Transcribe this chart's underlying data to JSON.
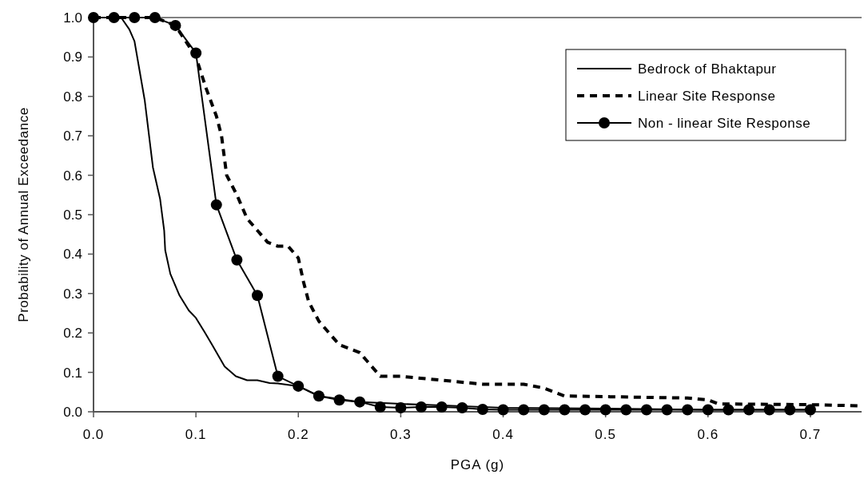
{
  "chart_data": {
    "type": "line",
    "xlabel": "PGA (g)",
    "ylabel": "Probability of Annual Exceedance",
    "xlim": [
      0,
      0.75
    ],
    "xticks": [
      "0.0",
      0.1,
      0.2,
      0.3,
      0.4,
      0.5,
      0.6,
      0.7
    ],
    "ylim": [
      0,
      1
    ],
    "yticks": [
      {
        "value": 0,
        "label": "0.0"
      },
      0.1,
      0.2,
      0.3,
      0.4,
      0.5,
      0.6,
      0.7,
      0.8,
      0.9,
      {
        "value": 1,
        "label": "1.0"
      }
    ],
    "grid": false,
    "legend": "top right",
    "series": [
      {
        "name": "Bedrock of Bhaktapur",
        "color": "#000000",
        "line_style": "solid",
        "marker": "none",
        "x": [
          0,
          0.02,
          0.027,
          0.035,
          0.04,
          0.05,
          0.058,
          0.065,
          0.069,
          0.07,
          0.075,
          0.084,
          0.093,
          0.1,
          0.109,
          0.116,
          0.128,
          0.139,
          0.15,
          0.16,
          0.172,
          0.18,
          0.2,
          0.22,
          0.26,
          0.3,
          0.35,
          0.4,
          0.5,
          0.6,
          0.7
        ],
        "values": [
          1,
          1,
          1,
          0.97,
          0.94,
          0.79,
          0.62,
          0.54,
          0.46,
          0.41,
          0.35,
          0.295,
          0.257,
          0.238,
          0.2,
          0.169,
          0.115,
          0.09,
          0.08,
          0.08,
          0.073,
          0.072,
          0.065,
          0.04,
          0.025,
          0.02,
          0.015,
          0.01,
          0.008,
          0.005,
          0.005
        ]
      },
      {
        "name": "Linear Site Response",
        "color": "#000000",
        "line_style": "dashed",
        "marker": "none",
        "x": [
          0,
          0.06,
          0.08,
          0.09,
          0.1,
          0.11,
          0.12,
          0.125,
          0.13,
          0.14,
          0.15,
          0.16,
          0.17,
          0.18,
          0.19,
          0.2,
          0.205,
          0.21,
          0.22,
          0.23,
          0.24,
          0.26,
          0.27,
          0.28,
          0.3,
          0.34,
          0.38,
          0.42,
          0.44,
          0.46,
          0.58,
          0.6,
          0.61,
          0.7,
          0.75
        ],
        "values": [
          1,
          1,
          0.98,
          0.94,
          0.9,
          0.82,
          0.75,
          0.7,
          0.6,
          0.55,
          0.49,
          0.46,
          0.43,
          0.42,
          0.42,
          0.39,
          0.33,
          0.28,
          0.23,
          0.2,
          0.17,
          0.15,
          0.12,
          0.09,
          0.09,
          0.08,
          0.07,
          0.07,
          0.06,
          0.04,
          0.035,
          0.03,
          0.02,
          0.018,
          0.015
        ]
      },
      {
        "name": "Non - linear Site Response",
        "color": "#000000",
        "line_style": "solid",
        "marker": "circle",
        "x": [
          0,
          0.02,
          0.04,
          0.06,
          0.08,
          0.1,
          0.12,
          0.14,
          0.16,
          0.18,
          0.2,
          0.22,
          0.24,
          0.26,
          0.28,
          0.3,
          0.32,
          0.34,
          0.36,
          0.38,
          0.4,
          0.42,
          0.44,
          0.46,
          0.48,
          0.5,
          0.52,
          0.54,
          0.56,
          0.58,
          0.6,
          0.62,
          0.64,
          0.66,
          0.68,
          0.7
        ],
        "values": [
          1,
          1,
          1,
          1,
          0.98,
          0.91,
          0.525,
          0.385,
          0.295,
          0.09,
          0.065,
          0.04,
          0.03,
          0.025,
          0.012,
          0.01,
          0.012,
          0.012,
          0.01,
          0.006,
          0.005,
          0.005,
          0.005,
          0.005,
          0.005,
          0.005,
          0.005,
          0.005,
          0.005,
          0.005,
          0.005,
          0.005,
          0.005,
          0.005,
          0.005,
          0.005
        ]
      }
    ]
  }
}
